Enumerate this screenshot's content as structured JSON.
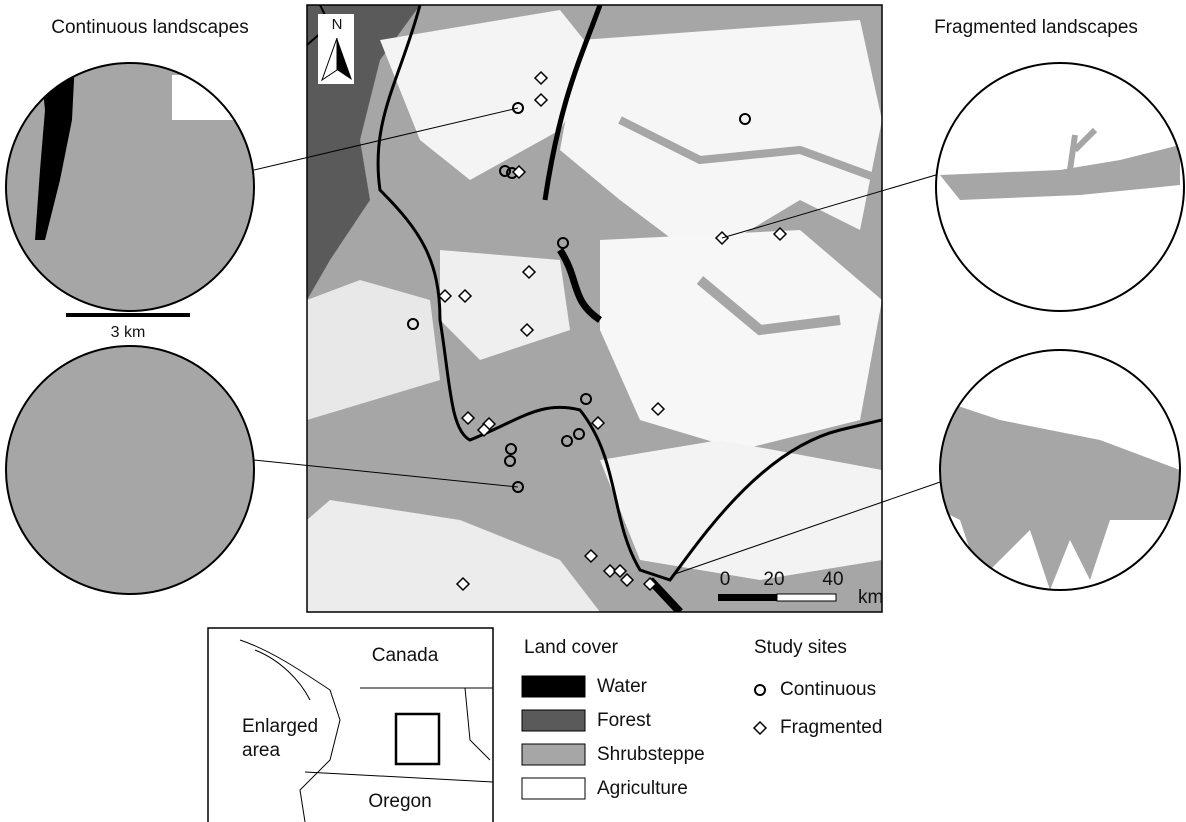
{
  "titles": {
    "left": "Continuous landscapes",
    "right": "Fragmented landscapes"
  },
  "map": {
    "north": "N",
    "scale": {
      "ticks": [
        "0",
        "20",
        "40"
      ],
      "unit": "km"
    }
  },
  "circle_scale": "3 km",
  "inset": {
    "labels": [
      "Canada",
      "Enlarged area",
      "Oregon"
    ]
  },
  "legend": {
    "land_cover": {
      "title": "Land cover",
      "items": [
        {
          "name": "Water",
          "color": "#000000"
        },
        {
          "name": "Forest",
          "color": "#5a5a5a"
        },
        {
          "name": "Shrubsteppe",
          "color": "#a6a6a6"
        },
        {
          "name": "Agriculture",
          "color": "#ffffff"
        }
      ]
    },
    "study_sites": {
      "title": "Study sites",
      "items": [
        "Continuous",
        "Fragmented"
      ]
    }
  }
}
